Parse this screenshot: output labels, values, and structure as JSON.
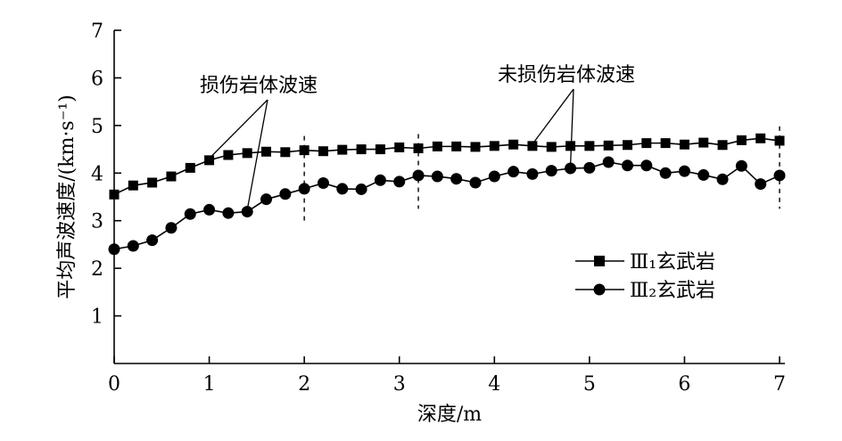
{
  "chart_data": {
    "type": "line",
    "xlabel": "深度/m",
    "ylabel": "平均声波速度/(km·s⁻¹)",
    "xlim": [
      0,
      7
    ],
    "ylim": [
      0,
      7
    ],
    "x_ticks": [
      "0",
      "1",
      "2",
      "3",
      "4",
      "5",
      "6",
      "7"
    ],
    "y_ticks": [
      "1",
      "2",
      "3",
      "4",
      "5",
      "6",
      "7"
    ],
    "x": [
      0.0,
      0.2,
      0.4,
      0.6,
      0.8,
      1.0,
      1.2,
      1.4,
      1.6,
      1.8,
      2.0,
      2.2,
      2.4,
      2.6,
      2.8,
      3.0,
      3.2,
      3.4,
      3.6,
      3.8,
      4.0,
      4.2,
      4.4,
      4.6,
      4.8,
      5.0,
      5.2,
      5.4,
      5.6,
      5.8,
      6.0,
      6.2,
      6.4,
      6.6,
      6.8,
      7.0
    ],
    "series": [
      {
        "name": "Ⅲ₁玄武岩",
        "marker": "square",
        "values": [
          3.55,
          3.74,
          3.8,
          3.93,
          4.11,
          4.27,
          4.38,
          4.42,
          4.45,
          4.44,
          4.48,
          4.46,
          4.49,
          4.5,
          4.5,
          4.54,
          4.52,
          4.56,
          4.56,
          4.55,
          4.57,
          4.6,
          4.57,
          4.55,
          4.57,
          4.57,
          4.58,
          4.59,
          4.63,
          4.63,
          4.6,
          4.64,
          4.59,
          4.69,
          4.73,
          4.68
        ]
      },
      {
        "name": "Ⅲ₂玄武岩",
        "marker": "circle",
        "values": [
          2.4,
          2.47,
          2.59,
          2.85,
          3.14,
          3.23,
          3.16,
          3.19,
          3.45,
          3.56,
          3.67,
          3.79,
          3.67,
          3.66,
          3.85,
          3.82,
          3.95,
          3.93,
          3.88,
          3.8,
          3.93,
          4.03,
          3.98,
          4.05,
          4.1,
          4.11,
          4.23,
          4.16,
          4.16,
          4.0,
          4.04,
          3.96,
          3.87,
          4.15,
          3.77,
          3.95
        ]
      }
    ],
    "annotations": [
      "损伤岩体波速",
      "未损伤岩体波速"
    ],
    "dashed_markers_x": [
      2.0,
      3.2,
      7.0
    ],
    "legend_position": "right"
  }
}
